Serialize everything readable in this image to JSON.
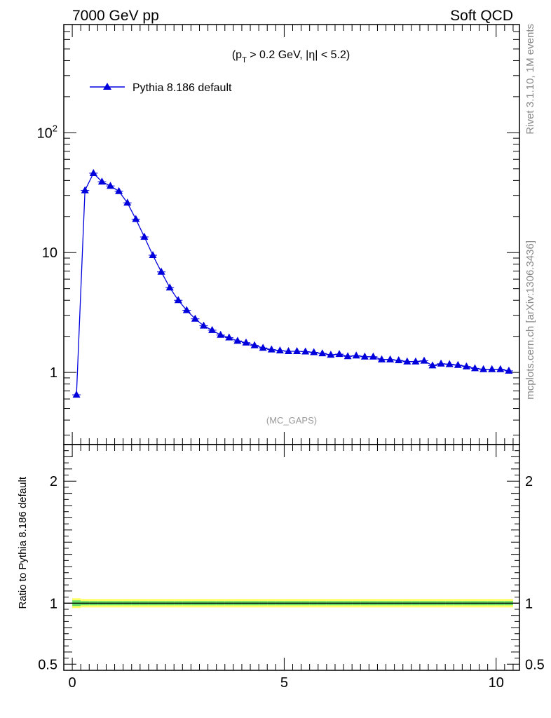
{
  "header": {
    "left_title": "7000 GeV pp",
    "right_title": "Soft QCD"
  },
  "side_labels": {
    "top": "Rivet 3.1.10,  1M events",
    "bottom": "mcplots.cern.ch [arXiv:1306.3436]"
  },
  "annotation": {
    "cut_prefix": "(p",
    "cut_sub": "T",
    "cut_suffix": " > 0.2 GeV, |η| < 5.2)",
    "analysis": "(MC_GAPS)"
  },
  "legend": {
    "entry": "Pythia 8.186 default"
  },
  "colors": {
    "series": "#0000dd",
    "band_outer": "#ffff66",
    "band_inner": "#66dd66",
    "ratio_line": "#000000"
  },
  "chart_data": [
    {
      "type": "line",
      "ylog": true,
      "xlim": [
        -0.2,
        10.55
      ],
      "ylim": [
        0.25,
        800
      ],
      "y_ticks": [
        {
          "value": 1,
          "label": "1"
        },
        {
          "value": 10,
          "label": "10"
        },
        {
          "value": 100,
          "label": "10",
          "sup": "2"
        }
      ],
      "legend_position": "top-left",
      "series": [
        {
          "name": "Pythia 8.186 default",
          "marker": "triangle",
          "x": [
            0.1,
            0.3,
            0.5,
            0.7,
            0.9,
            1.1,
            1.3,
            1.5,
            1.7,
            1.9,
            2.1,
            2.3,
            2.5,
            2.7,
            2.9,
            3.1,
            3.3,
            3.5,
            3.7,
            3.9,
            4.1,
            4.3,
            4.5,
            4.7,
            4.9,
            5.1,
            5.3,
            5.5,
            5.7,
            5.9,
            6.1,
            6.3,
            6.5,
            6.7,
            6.9,
            7.1,
            7.3,
            7.5,
            7.7,
            7.9,
            8.1,
            8.3,
            8.5,
            8.7,
            8.9,
            9.1,
            9.3,
            9.5,
            9.7,
            9.9,
            10.1,
            10.3
          ],
          "y": [
            0.65,
            33,
            46,
            39,
            36,
            32.5,
            26,
            19,
            13.5,
            9.5,
            6.9,
            5.1,
            4.0,
            3.3,
            2.8,
            2.45,
            2.25,
            2.05,
            1.95,
            1.83,
            1.77,
            1.68,
            1.6,
            1.55,
            1.52,
            1.5,
            1.5,
            1.49,
            1.47,
            1.44,
            1.4,
            1.42,
            1.36,
            1.38,
            1.35,
            1.35,
            1.28,
            1.28,
            1.26,
            1.23,
            1.23,
            1.25,
            1.14,
            1.18,
            1.17,
            1.15,
            1.12,
            1.08,
            1.06,
            1.06,
            1.06,
            1.03
          ]
        }
      ]
    },
    {
      "type": "line",
      "ylabel": "Ratio to Pythia 8.186 default",
      "xlim": [
        -0.2,
        10.55
      ],
      "ylim": [
        0.45,
        2.3
      ],
      "y_ticks": [
        {
          "value": 0.5,
          "label": "0.5"
        },
        {
          "value": 1,
          "label": "1"
        },
        {
          "value": 2,
          "label": "2"
        }
      ],
      "x_ticks": [
        {
          "value": 0,
          "label": "0"
        },
        {
          "value": 5,
          "label": "5"
        },
        {
          "value": 10,
          "label": "10"
        }
      ],
      "ratio_value": 1.0
    }
  ]
}
